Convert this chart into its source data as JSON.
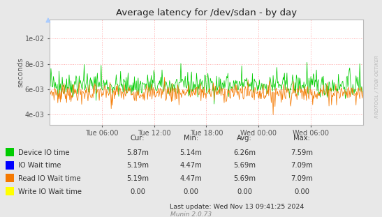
{
  "title": "Average latency for /dev/sdan - by day",
  "ylabel": "seconds",
  "bg_color": "#e8e8e8",
  "plot_bg_color": "#ffffff",
  "grid_color": "#ffaaaa",
  "y_ticks": [
    0.004,
    0.006,
    0.008,
    0.01
  ],
  "y_ticks_labels": [
    "4e-03",
    "6e-03",
    "8e-03",
    "1e-02"
  ],
  "ylim": [
    0.0032,
    0.0115
  ],
  "n_points": 500,
  "green_mean": 0.0063,
  "green_std": 0.00045,
  "orange_mean": 0.00575,
  "orange_std": 0.00035,
  "green_color": "#00cc00",
  "orange_color": "#f57900",
  "blue_color": "#0000ff",
  "yellow_color": "#ffff00",
  "x_ticks_labels": [
    "Tue 06:00",
    "Tue 12:00",
    "Tue 18:00",
    "Wed 00:00",
    "Wed 06:00"
  ],
  "legend_items": [
    {
      "label": "Device IO time",
      "color": "#00cc00"
    },
    {
      "label": "IO Wait time",
      "color": "#0000ff"
    },
    {
      "label": "Read IO Wait time",
      "color": "#f57900"
    },
    {
      "label": "Write IO Wait time",
      "color": "#ffff00"
    }
  ],
  "legend_cur": [
    "5.87m",
    "5.19m",
    "5.19m",
    "0.00"
  ],
  "legend_min": [
    "5.14m",
    "4.47m",
    "4.47m",
    "0.00"
  ],
  "legend_avg": [
    "6.26m",
    "5.69m",
    "5.69m",
    "0.00"
  ],
  "legend_max": [
    "7.59m",
    "7.09m",
    "7.09m",
    "0.00"
  ],
  "watermark": "RRDTOOL / TOBI OETIKER",
  "footer_munin": "Munin 2.0.73",
  "footer_update": "Last update: Wed Nov 13 09:41:25 2024"
}
